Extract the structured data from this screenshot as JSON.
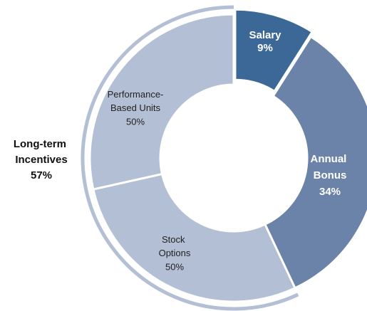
{
  "chart_data": {
    "type": "donut",
    "categories": [
      "Salary",
      "Annual Bonus",
      "Long-term Incentives"
    ],
    "values": [
      9,
      34,
      57
    ],
    "value_labels": [
      "9%",
      "34%",
      "57%"
    ],
    "colors": [
      "#3b6897",
      "#6b83a9",
      "#b3bfd4"
    ],
    "breakdown": {
      "parent": 2,
      "categories": [
        "Stock Options",
        "Performance-Based Units"
      ],
      "values": [
        50,
        50
      ],
      "value_labels": [
        "50%",
        "50%"
      ]
    }
  }
}
